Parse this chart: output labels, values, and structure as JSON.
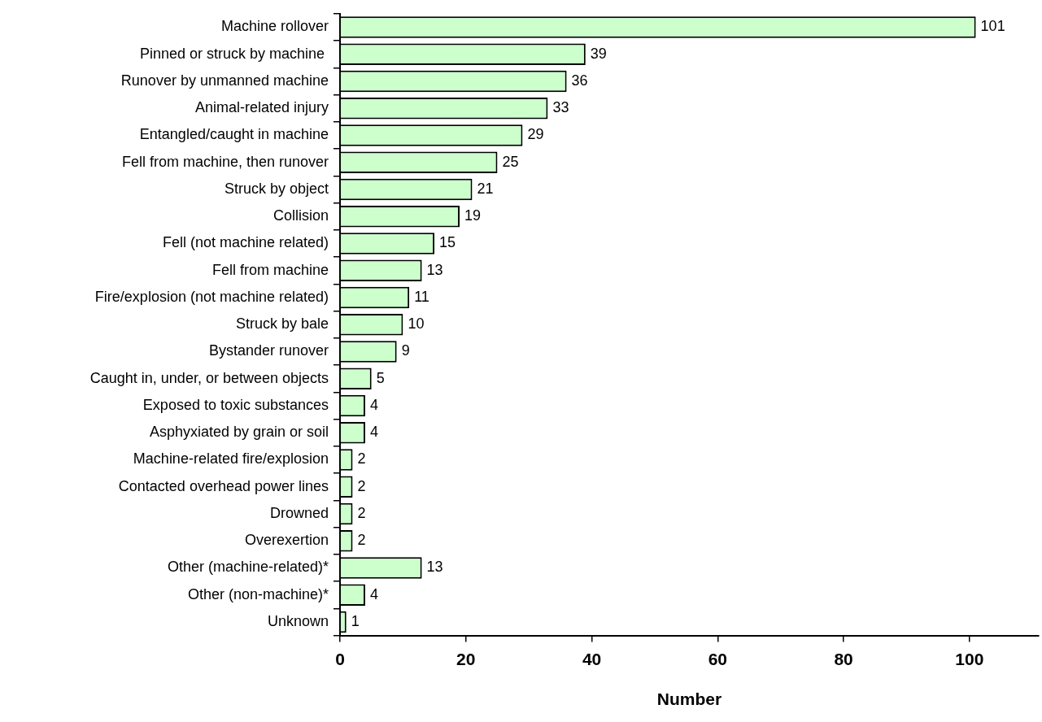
{
  "chart_data": {
    "type": "bar",
    "orientation": "horizontal",
    "xlabel": "Number",
    "categories": [
      "Machine rollover",
      "Pinned or struck by machine ",
      "Runover by unmanned machine",
      "Animal-related injury",
      "Entangled/caught in machine",
      "Fell from machine, then runover",
      "Struck by object",
      "Collision",
      "Fell (not machine related)",
      "Fell from machine",
      "Fire/explosion (not machine related)",
      "Struck by bale",
      "Bystander runover",
      "Caught in, under, or between objects",
      "Exposed to toxic substances",
      "Asphyxiated by grain or soil",
      "Machine-related fire/explosion",
      "Contacted overhead power lines",
      "Drowned",
      "Overexertion",
      "Other (machine-related)*",
      "Other (non-machine)*",
      "Unknown"
    ],
    "values": [
      101,
      39,
      36,
      33,
      29,
      25,
      21,
      19,
      15,
      13,
      11,
      10,
      9,
      5,
      4,
      4,
      2,
      2,
      2,
      2,
      13,
      4,
      1
    ],
    "color": "#ccffcc",
    "data_labels": true,
    "xlim": [
      0,
      111
    ],
    "xticks": [
      0,
      20,
      40,
      60,
      80,
      100
    ],
    "grid": false,
    "legend": false
  }
}
